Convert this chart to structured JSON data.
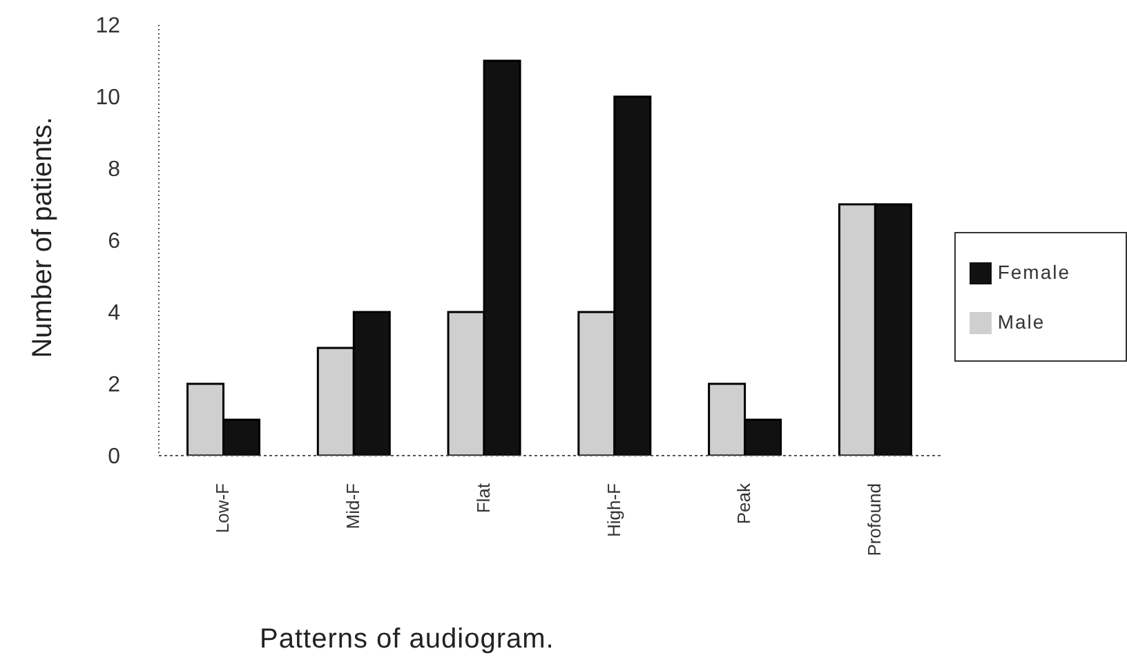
{
  "chart_data": {
    "type": "bar",
    "xlabel": "Patterns of audiogram.",
    "ylabel": "Number of patients.",
    "categories": [
      "Low-F",
      "Mid-F",
      "Flat",
      "High-F",
      "Peak",
      "Profound"
    ],
    "series": [
      {
        "name": "Male",
        "color": "#cfcfcf",
        "values": [
          2,
          3,
          4,
          4,
          2,
          7
        ]
      },
      {
        "name": "Female",
        "color": "#111111",
        "values": [
          1,
          4,
          11,
          10,
          1,
          7
        ]
      }
    ],
    "ylim": [
      0,
      12
    ],
    "yticks": [
      0,
      2,
      4,
      6,
      8,
      10,
      12
    ],
    "legend": "right"
  }
}
